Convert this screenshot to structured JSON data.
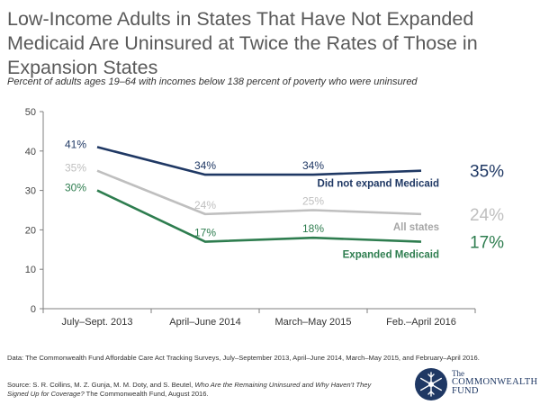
{
  "title": "Low-Income Adults in States That Have Not Expanded Medicaid Are Uninsured at Twice the Rates of Those in Expansion States",
  "subtitle": "Percent of adults ages 19–64 with incomes below 138 percent of poverty who were uninsured",
  "note": "Data: The Commonwealth Fund Affordable Care Act Tracking Surveys, July–September 2013, April–June 2014, March–May 2015, and February–April 2016.",
  "source": {
    "prefix": "Source: S. R. Collins, M. Z. Gunja, M. M. Doty, and S. Beutel, ",
    "italic": "Who Are the Remaining Uninsured and Why Haven’t They Signed Up for Coverage?",
    "suffix": " The Commonwealth Fund, August 2016."
  },
  "logo": {
    "line1": "The",
    "line2": "COMMONWEALTH",
    "line3": "FUND"
  },
  "chart_data": {
    "type": "line",
    "categories": [
      "July–Sept. 2013",
      "April–June 2014",
      "March–May 2015",
      "Feb.–April 2016"
    ],
    "ylim": [
      0,
      50
    ],
    "yticks": [
      0,
      10,
      20,
      30,
      40,
      50
    ],
    "grid": false,
    "series": [
      {
        "name": "Did not expand Medicaid",
        "values": [
          41,
          34,
          34,
          35
        ],
        "labels": [
          "41%",
          "34%",
          "34%",
          "35%"
        ],
        "color": "#1f3864"
      },
      {
        "name": "All states",
        "values": [
          35,
          24,
          25,
          24
        ],
        "labels": [
          "35%",
          "24%",
          "25%",
          "24%"
        ],
        "color": "#bfbfbf"
      },
      {
        "name": "Expanded Medicaid",
        "values": [
          30,
          17,
          18,
          17
        ],
        "labels": [
          "30%",
          "17%",
          "18%",
          "17%"
        ],
        "color": "#2e7d4f"
      }
    ]
  }
}
